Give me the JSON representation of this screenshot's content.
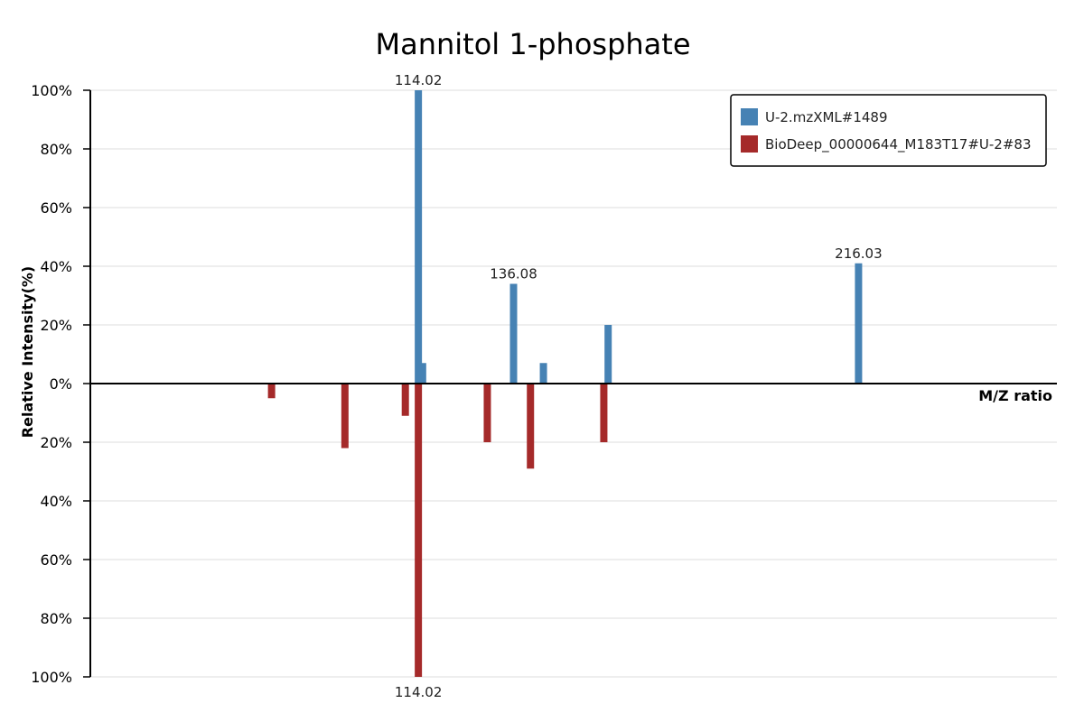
{
  "chart_data": {
    "type": "bar",
    "title": "Mannitol 1-phosphate",
    "xlabel": "M/Z ratio",
    "ylabel": "Relative Intensity(%)",
    "ylim": [
      -100,
      100
    ],
    "yticks": [
      100,
      80,
      60,
      40,
      20,
      0,
      -20,
      -40,
      -60,
      -80,
      -100
    ],
    "ytick_labels": [
      "100%",
      "80%",
      "60%",
      "40%",
      "20%",
      "0%",
      "20%",
      "40%",
      "60%",
      "80%",
      "100%"
    ],
    "grid": true,
    "legend_position": "top-right",
    "series": [
      {
        "name": "U-2.mzXML#1489",
        "color": "#4682b4",
        "direction": "up",
        "points": [
          {
            "mz": 114.02,
            "intensity": 100,
            "label": "114.02"
          },
          {
            "mz": 115.0,
            "intensity": 7
          },
          {
            "mz": 136.08,
            "intensity": 34,
            "label": "136.08"
          },
          {
            "mz": 143.0,
            "intensity": 7
          },
          {
            "mz": 158.0,
            "intensity": 20
          },
          {
            "mz": 216.03,
            "intensity": 41,
            "label": "216.03"
          }
        ]
      },
      {
        "name": "BioDeep_00000644_M183T17#U-2#83",
        "color": "#a52a2a",
        "direction": "down",
        "points": [
          {
            "mz": 80.0,
            "intensity": 5
          },
          {
            "mz": 97.0,
            "intensity": 22
          },
          {
            "mz": 97.0,
            "intensity": 0,
            "skip": true
          },
          {
            "mz": 111.0,
            "intensity": 11
          },
          {
            "mz": 114.02,
            "intensity": 100,
            "label": "114.02"
          },
          {
            "mz": 130.0,
            "intensity": 20
          },
          {
            "mz": 140.0,
            "intensity": 29
          },
          {
            "mz": 157.0,
            "intensity": 20
          }
        ]
      }
    ]
  }
}
